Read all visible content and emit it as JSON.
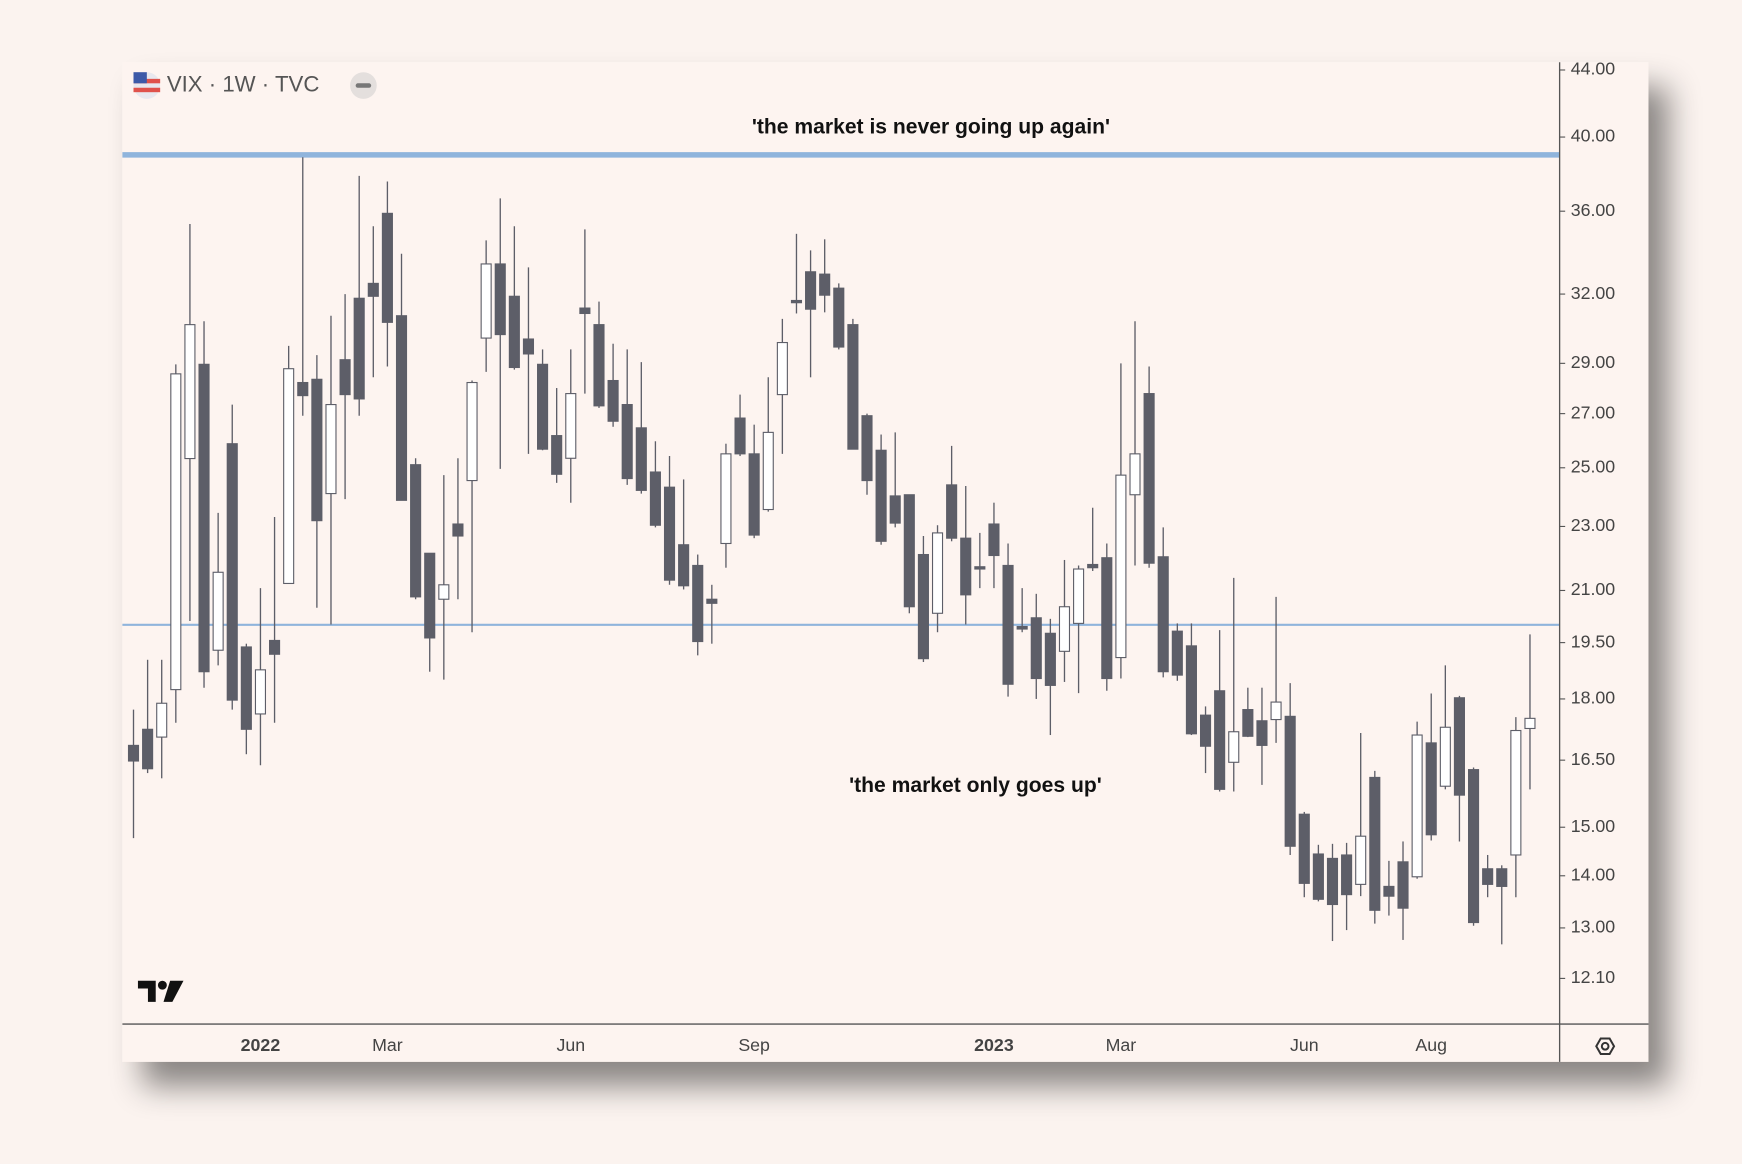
{
  "chart_data": {
    "type": "candlestick",
    "title": "VIX · 1W · TVC",
    "annotations": [
      "'the market is never going up again'",
      "'the market only goes up'"
    ],
    "levels": [
      39,
      20
    ],
    "level_color": "#8fb4dc",
    "up_color": "#ffffff",
    "down_color": "#5d5e68",
    "log_scale": true,
    "ylim": [
      11.34,
      44.49
    ],
    "yticks": [
      {
        "value": 44,
        "label": "44.00"
      },
      {
        "value": 40,
        "label": "40.00"
      },
      {
        "value": 36,
        "label": "36.00"
      },
      {
        "value": 32,
        "label": "32.00"
      },
      {
        "value": 29,
        "label": "29.00"
      },
      {
        "value": 27,
        "label": "27.00"
      },
      {
        "value": 25,
        "label": "25.00"
      },
      {
        "value": 23,
        "label": "23.00"
      },
      {
        "value": 21,
        "label": "21.00"
      },
      {
        "value": 19.5,
        "label": "19.50"
      },
      {
        "value": 18,
        "label": "18.00"
      },
      {
        "value": 16.5,
        "label": "16.50"
      },
      {
        "value": 15,
        "label": "15.00"
      },
      {
        "value": 14,
        "label": "14.00"
      },
      {
        "value": 13,
        "label": "13.00"
      },
      {
        "value": 12.1,
        "label": "12.10"
      }
    ],
    "categories": [
      null,
      null,
      null,
      null,
      null,
      null,
      null,
      null,
      null,
      "2022",
      null,
      null,
      null,
      null,
      null,
      null,
      null,
      null,
      "Mar",
      null,
      null,
      null,
      null,
      null,
      null,
      null,
      null,
      null,
      null,
      null,
      null,
      "Jun",
      null,
      null,
      null,
      null,
      null,
      null,
      null,
      null,
      null,
      null,
      null,
      null,
      "Sep",
      null,
      null,
      null,
      null,
      null,
      null,
      null,
      null,
      null,
      null,
      null,
      null,
      null,
      null,
      null,
      null,
      "2023",
      null,
      null,
      null,
      null,
      null,
      null,
      null,
      null,
      "Mar",
      null,
      null,
      null,
      null,
      null,
      null,
      null,
      null,
      null,
      null,
      null,
      null,
      "Jun",
      null,
      null,
      null,
      null,
      null,
      null,
      null,
      null,
      "Aug",
      null,
      null,
      null,
      null,
      null,
      null,
      null
    ],
    "open": [
      16.85,
      17.24,
      17.05,
      18.24,
      25.33,
      28.96,
      19.29,
      25.87,
      19.38,
      17.62,
      19.56,
      21.21,
      28.22,
      28.35,
      24.1,
      29.15,
      31.81,
      32.49,
      35.89,
      31.03,
      25.11,
      22.14,
      20.74,
      23.08,
      24.55,
      30.06,
      33.4,
      31.9,
      30.02,
      28.96,
      26.17,
      25.34,
      31.37,
      30.64,
      28.3,
      27.35,
      26.46,
      24.85,
      24.32,
      22.41,
      21.76,
      20.74,
      22.45,
      26.83,
      25.5,
      23.56,
      27.74,
      31.71,
      33.03,
      32.92,
      32.27,
      30.64,
      26.92,
      25.63,
      24.02,
      24.06,
      22.1,
      20.33,
      24.4,
      22.62,
      21.72,
      23.08,
      21.76,
      19.95,
      20.2,
      19.76,
      19.26,
      20.04,
      21.79,
      22.0,
      19.09,
      24.06,
      27.78,
      22.03,
      19.82,
      19.41,
      17.59,
      18.21,
      16.45,
      17.73,
      17.45,
      17.48,
      17.56,
      15.28,
      14.44,
      14.35,
      14.42,
      13.83,
      16.1,
      13.79,
      14.28,
      13.98,
      16.91,
      15.9,
      18.03,
      16.28,
      14.14,
      14.14,
      14.42,
      17.26
    ],
    "high": [
      17.73,
      19.03,
      19.03,
      28.96,
      35.35,
      30.79,
      23.45,
      27.35,
      19.47,
      21.07,
      23.31,
      29.73,
      38.87,
      29.34,
      31.03,
      32.0,
      37.85,
      35.24,
      37.55,
      33.89,
      25.34,
      22.14,
      24.74,
      25.34,
      28.3,
      34.54,
      36.66,
      35.24,
      33.24,
      29.58,
      28.0,
      29.58,
      35.08,
      31.66,
      29.82,
      29.58,
      29.05,
      25.96,
      25.42,
      24.59,
      22.1,
      21.17,
      25.87,
      27.74,
      26.58,
      28.43,
      30.89,
      34.86,
      34.05,
      34.59,
      32.49,
      30.89,
      27.0,
      26.21,
      26.29,
      24.06,
      22.69,
      23.04,
      25.79,
      24.36,
      22.79,
      23.79,
      22.45,
      21.07,
      20.9,
      20.17,
      21.93,
      21.76,
      23.62,
      22.45,
      29.0,
      30.79,
      28.87,
      22.97,
      20.04,
      20.04,
      17.81,
      19.85,
      21.38,
      18.29,
      18.29,
      20.81,
      18.41,
      15.33,
      14.63,
      14.65,
      14.67,
      17.15,
      16.25,
      14.3,
      14.7,
      17.43,
      18.14,
      18.88,
      18.08,
      16.33,
      14.42,
      14.21,
      17.54,
      19.73
    ],
    "low": [
      14.77,
      16.2,
      16.08,
      17.4,
      20.11,
      18.29,
      18.88,
      17.73,
      16.64,
      16.38,
      17.4,
      21.21,
      26.92,
      20.49,
      20.01,
      23.91,
      26.92,
      28.43,
      28.87,
      23.87,
      20.74,
      18.71,
      18.5,
      20.74,
      19.79,
      28.65,
      24.96,
      28.74,
      25.5,
      25.63,
      24.47,
      23.79,
      27.78,
      27.22,
      26.5,
      24.4,
      24.1,
      22.97,
      21.17,
      21.03,
      19.15,
      19.47,
      21.69,
      25.42,
      22.62,
      23.49,
      25.5,
      31.13,
      28.43,
      31.18,
      29.58,
      25.67,
      24.06,
      22.41,
      22.97,
      20.33,
      18.97,
      19.79,
      22.52,
      20.01,
      21.07,
      21.07,
      18.06,
      19.79,
      18.0,
      17.1,
      18.44,
      18.15,
      21.59,
      18.21,
      18.53,
      21.76,
      21.69,
      18.56,
      18.47,
      17.1,
      16.2,
      15.78,
      15.78,
      17.05,
      15.93,
      16.91,
      14.42,
      13.58,
      13.5,
      12.76,
      12.96,
      13.6,
      13.08,
      13.23,
      12.78,
      13.94,
      14.72,
      15.83,
      14.7,
      13.04,
      13.58,
      12.7,
      13.58,
      15.83
    ],
    "close": [
      16.48,
      16.3,
      17.89,
      28.57,
      30.64,
      18.71,
      21.55,
      17.97,
      17.24,
      18.76,
      19.18,
      28.78,
      27.7,
      23.19,
      27.35,
      27.74,
      27.57,
      31.9,
      30.74,
      23.87,
      20.81,
      19.63,
      21.17,
      22.69,
      28.22,
      33.4,
      30.21,
      28.83,
      29.39,
      25.67,
      24.77,
      27.78,
      31.13,
      27.3,
      26.71,
      24.62,
      24.21,
      23.04,
      21.31,
      21.14,
      19.53,
      20.62,
      25.5,
      25.5,
      22.72,
      26.29,
      29.87,
      31.61,
      31.32,
      31.95,
      29.68,
      25.67,
      24.55,
      22.52,
      23.11,
      20.52,
      19.06,
      22.79,
      22.62,
      20.87,
      21.65,
      22.07,
      18.38,
      19.88,
      18.53,
      18.35,
      20.52,
      21.65,
      21.69,
      18.53,
      24.74,
      25.5,
      21.83,
      18.71,
      18.62,
      17.13,
      16.83,
      15.83,
      17.18,
      17.07,
      16.85,
      17.92,
      14.6,
      13.85,
      13.54,
      13.44,
      13.63,
      14.81,
      13.33,
      13.6,
      13.37,
      17.1,
      14.84,
      17.29,
      15.7,
      13.1,
      13.83,
      13.79,
      17.21,
      17.51
    ]
  }
}
